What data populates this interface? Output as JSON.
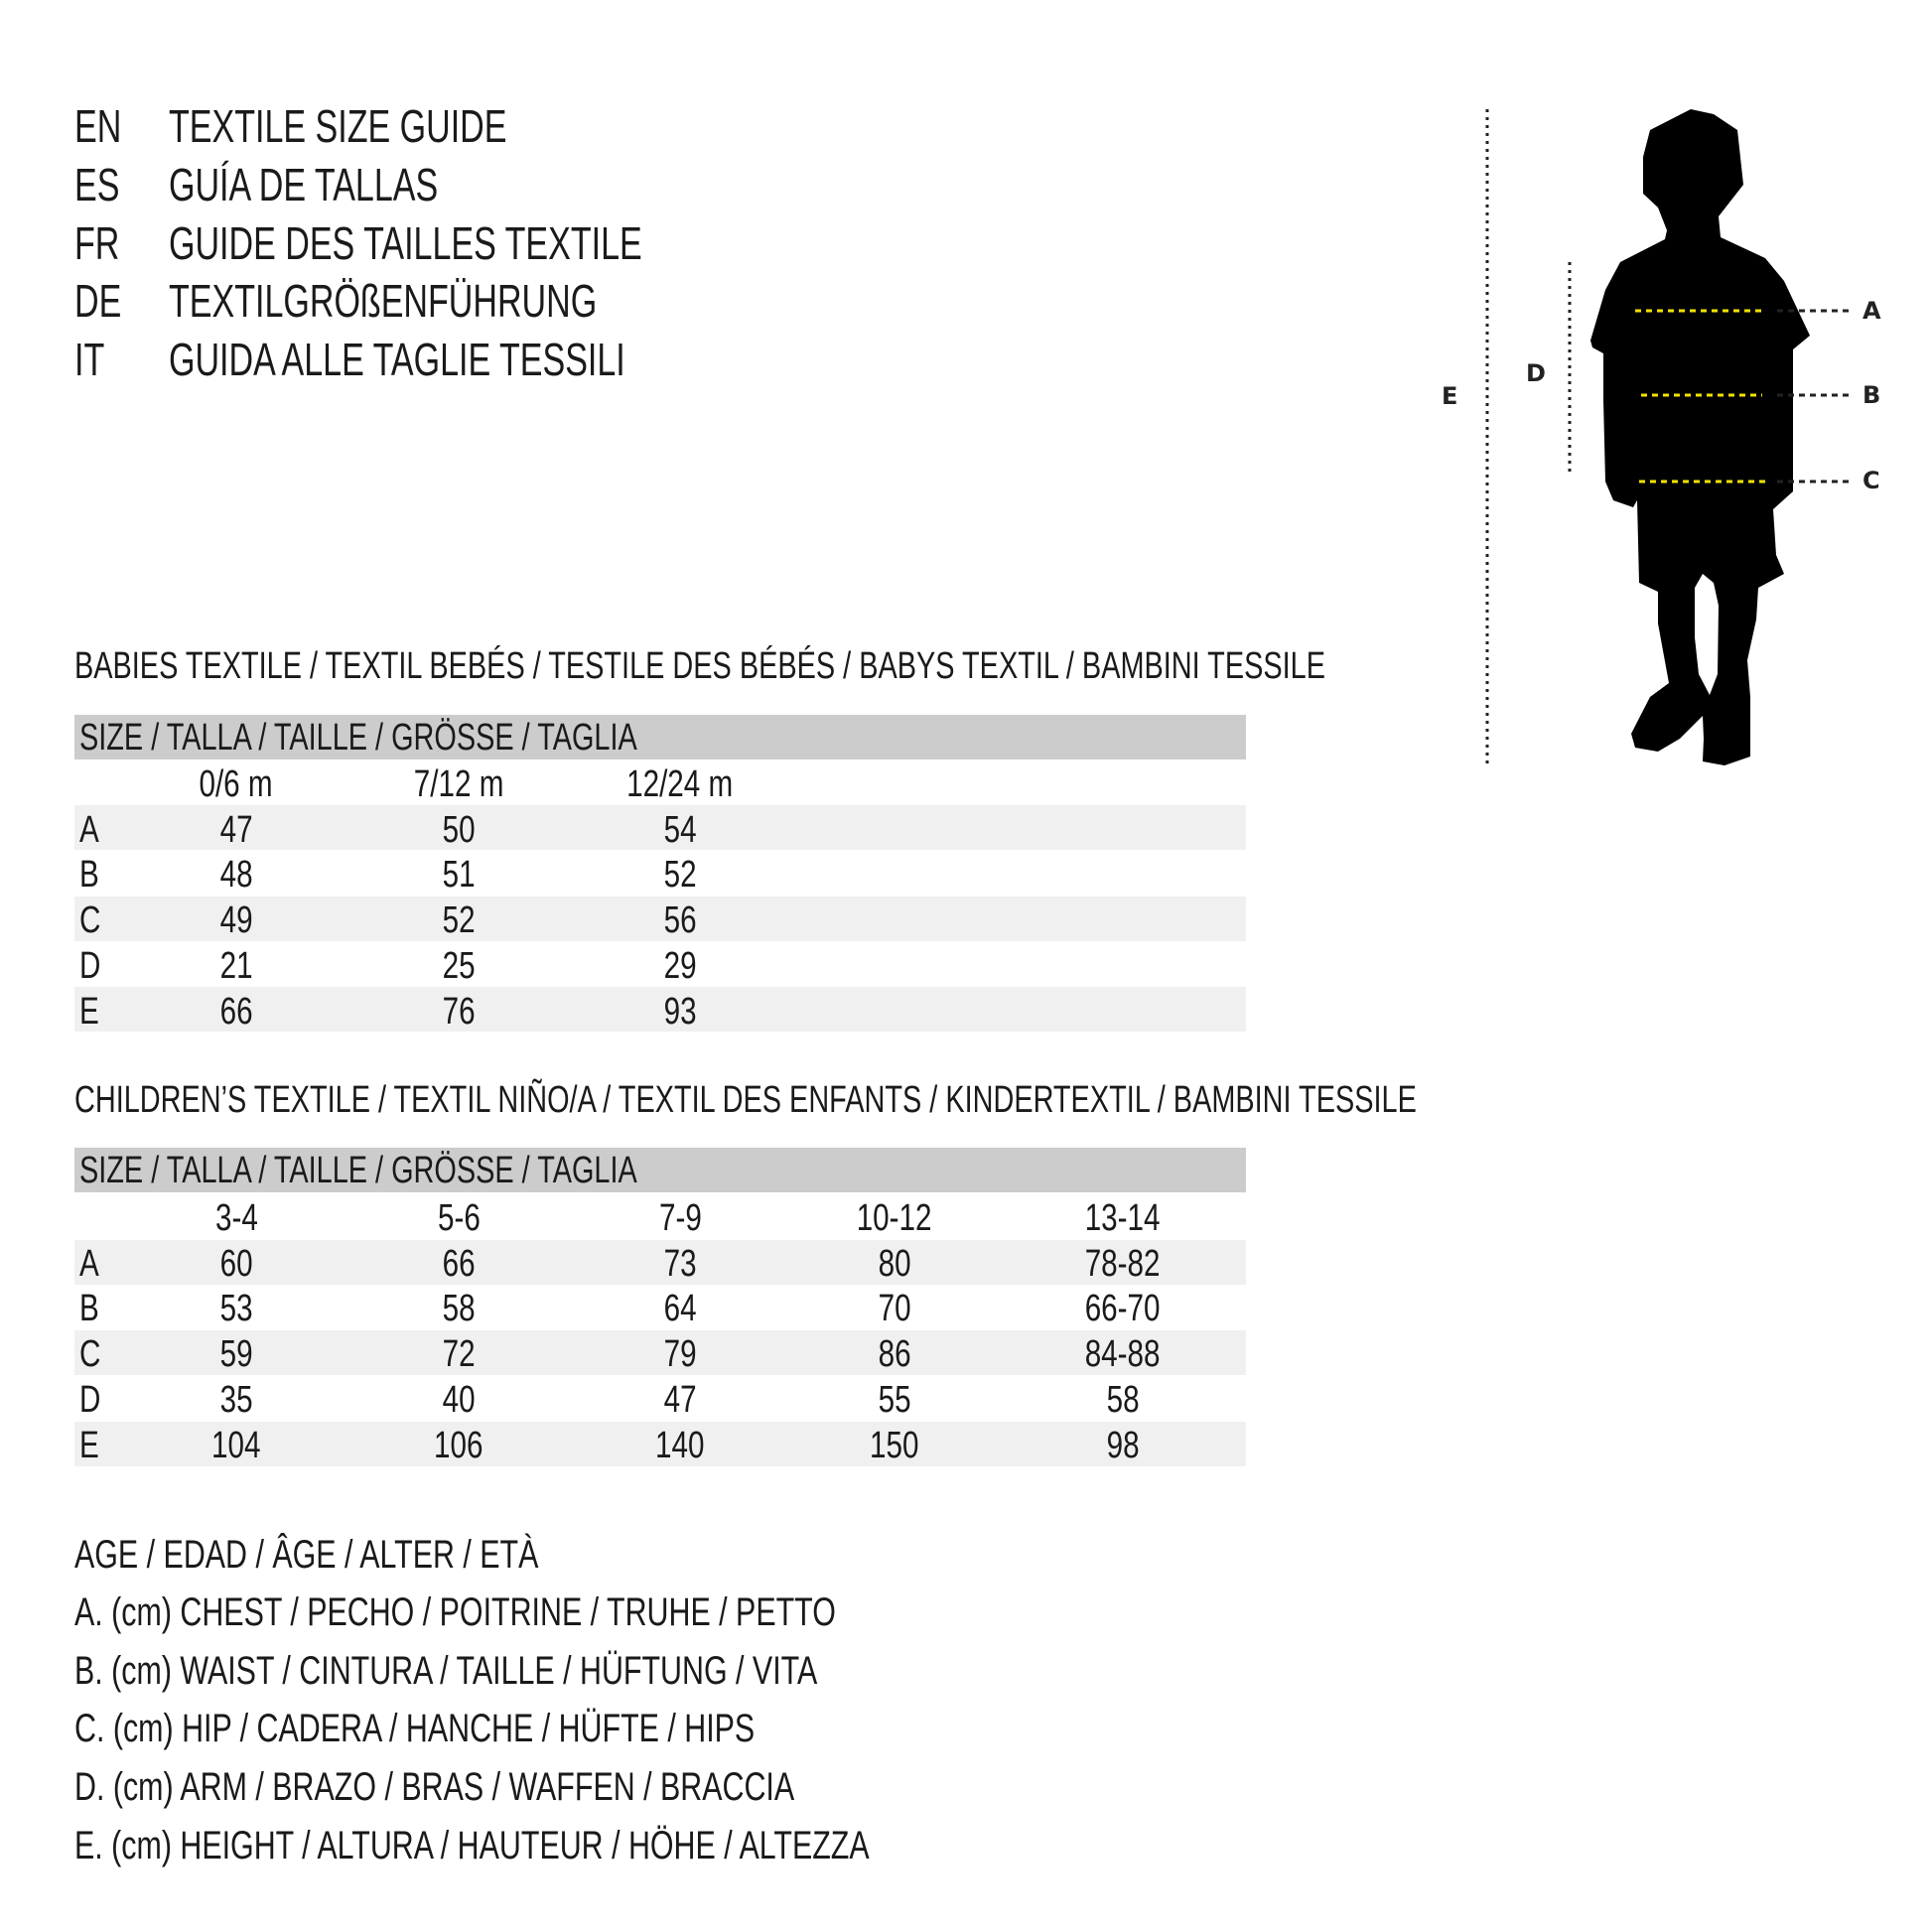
{
  "title_block": [
    {
      "lang": "EN",
      "text": "TEXTILE SIZE GUIDE"
    },
    {
      "lang": "ES",
      "text": "GUÍA DE TALLAS"
    },
    {
      "lang": "FR",
      "text": "GUIDE DES TAILLES TEXTILE"
    },
    {
      "lang": "DE",
      "text": "TEXTILGRÖßENFÜHRUNG"
    },
    {
      "lang": "IT",
      "text": "GUIDA ALLE TAGLIE TESSILI"
    }
  ],
  "figure": {
    "labels": {
      "a": "A",
      "b": "B",
      "c": "C",
      "d": "D",
      "e": "E"
    },
    "accent": "#f2e200"
  },
  "babies": {
    "heading": "BABIES TEXTILE / TEXTIL BEBÉS / TESTILE DES BÉBÉS / BABYS TEXTIL / BAMBINI TESSILE",
    "size_header": "SIZE / TALLA / TAILLE / GRÖSSE / TAGLIA",
    "columns": [
      "0/6 m",
      "7/12 m",
      "12/24 m"
    ],
    "rows": [
      {
        "label": "A",
        "values": [
          "47",
          "50",
          "54"
        ]
      },
      {
        "label": "B",
        "values": [
          "48",
          "51",
          "52"
        ]
      },
      {
        "label": "C",
        "values": [
          "49",
          "52",
          "56"
        ]
      },
      {
        "label": "D",
        "values": [
          "21",
          "25",
          "29"
        ]
      },
      {
        "label": "E",
        "values": [
          "66",
          "76",
          "93"
        ]
      }
    ]
  },
  "children": {
    "heading": "CHILDREN’S TEXTILE / TEXTIL NIÑO/A / TEXTIL DES ENFANTS / KINDERTEXTIL / BAMBINI TESSILE",
    "size_header": "SIZE / TALLA / TAILLE / GRÖSSE / TAGLIA",
    "columns": [
      "3-4",
      "5-6",
      "7-9",
      "10-12",
      "13-14"
    ],
    "rows": [
      {
        "label": "A",
        "values": [
          "60",
          "66",
          "73",
          "80",
          "78-82"
        ]
      },
      {
        "label": "B",
        "values": [
          "53",
          "58",
          "64",
          "70",
          "66-70"
        ]
      },
      {
        "label": "C",
        "values": [
          "59",
          "72",
          "79",
          "86",
          "84-88"
        ]
      },
      {
        "label": "D",
        "values": [
          "35",
          "40",
          "47",
          "55",
          "58"
        ]
      },
      {
        "label": "E",
        "values": [
          "104",
          "106",
          "140",
          "150",
          "98"
        ]
      }
    ]
  },
  "legend": [
    "AGE / EDAD / ÂGE / ALTER / ETÀ",
    "A. (cm) CHEST / PECHO / POITRINE / TRUHE / PETTO",
    "B. (cm) WAIST / CINTURA / TAILLE / HÜFTUNG / VITA",
    "C. (cm) HIP / CADERA / HANCHE / HÜFTE / HIPS",
    "D. (cm) ARM / BRAZO / BRAS / WAFFEN / BRACCIA",
    "E. (cm) HEIGHT / ALTURA / HAUTEUR / HÖHE / ALTEZZA"
  ]
}
